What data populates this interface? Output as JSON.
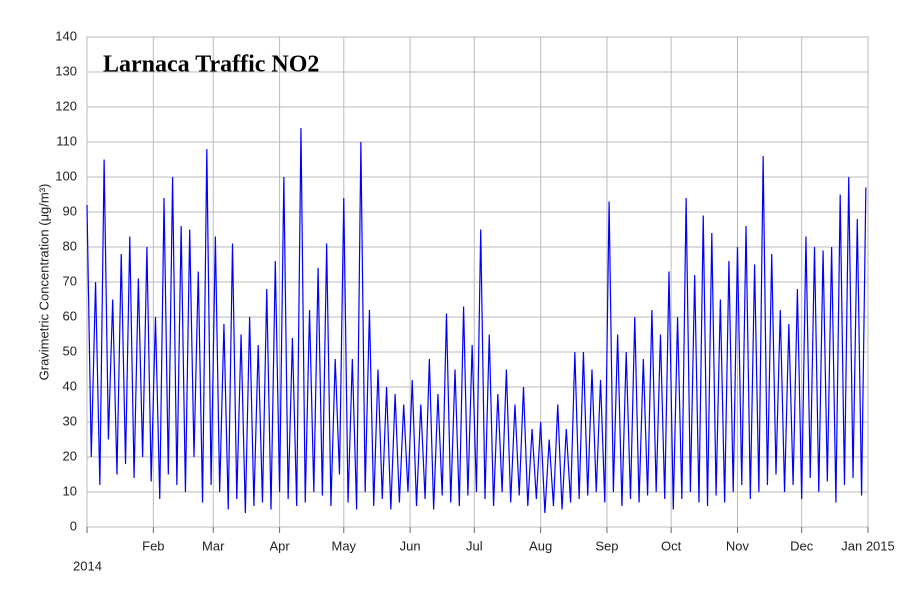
{
  "chart_data": {
    "type": "line",
    "title": "Larnaca Traffic NO2",
    "y_label": "Gravimetric Concentration (μg/m³)",
    "xlim": [
      0,
      365
    ],
    "ylim": [
      0,
      140
    ],
    "xticks": [
      {
        "value": 0,
        "label": "2014"
      },
      {
        "value": 31,
        "label": "Feb"
      },
      {
        "value": 59,
        "label": "Mar"
      },
      {
        "value": 90,
        "label": "Apr"
      },
      {
        "value": 120,
        "label": "May"
      },
      {
        "value": 151,
        "label": "Jun"
      },
      {
        "value": 181,
        "label": "Jul"
      },
      {
        "value": 212,
        "label": "Aug"
      },
      {
        "value": 243,
        "label": "Sep"
      },
      {
        "value": 273,
        "label": "Oct"
      },
      {
        "value": 304,
        "label": "Nov"
      },
      {
        "value": 334,
        "label": "Dec"
      },
      {
        "value": 365,
        "label": "Jan 2015"
      }
    ],
    "yticks": [
      0,
      10,
      20,
      30,
      40,
      50,
      60,
      70,
      80,
      90,
      100,
      110,
      120,
      130,
      140
    ],
    "grid": true,
    "series": [
      {
        "color": "#0000ff",
        "x": [
          0,
          2,
          4,
          6,
          8,
          10,
          12,
          14,
          16,
          18,
          20,
          22,
          24,
          26,
          28,
          30,
          32,
          34,
          36,
          38,
          40,
          42,
          44,
          46,
          48,
          50,
          52,
          54,
          56,
          58,
          60,
          62,
          64,
          66,
          68,
          70,
          72,
          74,
          76,
          78,
          80,
          82,
          84,
          86,
          88,
          90,
          92,
          94,
          96,
          98,
          100,
          102,
          104,
          106,
          108,
          110,
          112,
          114,
          116,
          118,
          120,
          122,
          124,
          126,
          128,
          130,
          132,
          134,
          136,
          138,
          140,
          142,
          144,
          146,
          148,
          150,
          152,
          154,
          156,
          158,
          160,
          162,
          164,
          166,
          168,
          170,
          172,
          174,
          176,
          178,
          180,
          182,
          184,
          186,
          188,
          190,
          192,
          194,
          196,
          198,
          200,
          202,
          204,
          206,
          208,
          210,
          212,
          214,
          216,
          218,
          220,
          222,
          224,
          226,
          228,
          230,
          232,
          234,
          236,
          238,
          240,
          242,
          244,
          246,
          248,
          250,
          252,
          254,
          256,
          258,
          260,
          262,
          264,
          266,
          268,
          270,
          272,
          274,
          276,
          278,
          280,
          282,
          284,
          286,
          288,
          290,
          292,
          294,
          296,
          298,
          300,
          302,
          304,
          306,
          308,
          310,
          312,
          314,
          316,
          318,
          320,
          322,
          324,
          326,
          328,
          330,
          332,
          334,
          336,
          338,
          340,
          342,
          344,
          346,
          348,
          350,
          352,
          354,
          356,
          358,
          360,
          362,
          364
        ],
        "values": [
          92,
          20,
          70,
          12,
          105,
          25,
          65,
          15,
          78,
          18,
          83,
          14,
          71,
          20,
          80,
          13,
          60,
          8,
          94,
          15,
          100,
          12,
          86,
          10,
          85,
          20,
          73,
          7,
          108,
          12,
          83,
          10,
          58,
          5,
          81,
          8,
          55,
          4,
          60,
          6,
          52,
          7,
          68,
          5,
          76,
          10,
          100,
          8,
          54,
          6,
          114,
          7,
          62,
          10,
          74,
          9,
          81,
          6,
          48,
          15,
          94,
          7,
          48,
          5,
          110,
          10,
          62,
          6,
          45,
          8,
          40,
          5,
          38,
          7,
          35,
          10,
          42,
          6,
          35,
          8,
          48,
          5,
          38,
          9,
          61,
          7,
          45,
          6,
          63,
          9,
          52,
          10,
          85,
          8,
          55,
          6,
          38,
          10,
          45,
          7,
          35,
          9,
          40,
          6,
          28,
          8,
          30,
          4,
          25,
          6,
          35,
          5,
          28,
          7,
          50,
          8,
          50,
          9,
          45,
          10,
          42,
          7,
          93,
          10,
          55,
          6,
          50,
          8,
          60,
          7,
          48,
          9,
          62,
          10,
          55,
          8,
          73,
          5,
          60,
          8,
          94,
          10,
          72,
          7,
          89,
          6,
          84,
          9,
          65,
          7,
          76,
          10,
          80,
          12,
          86,
          8,
          75,
          10,
          106,
          12,
          78,
          15,
          62,
          10,
          58,
          12,
          68,
          8,
          83,
          14,
          80,
          10,
          79,
          13,
          80,
          7,
          95,
          12,
          100,
          14,
          88,
          9,
          97
        ]
      }
    ]
  }
}
